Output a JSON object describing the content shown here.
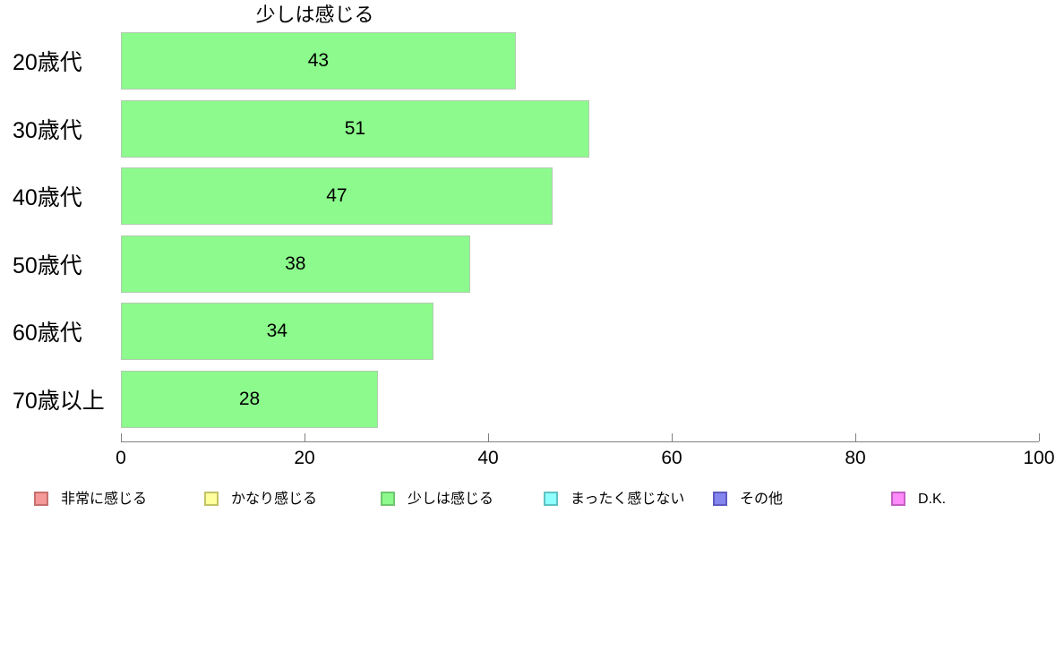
{
  "chart_data": {
    "type": "bar",
    "orientation": "horizontal",
    "title": "少しは感じる",
    "categories": [
      "20歳代",
      "30歳代",
      "40歳代",
      "50歳代",
      "60歳代",
      "70歳以上"
    ],
    "values": [
      43,
      51,
      47,
      38,
      34,
      28
    ],
    "xlabel": "",
    "ylabel": "",
    "xlim": [
      0,
      100
    ],
    "x_ticks": [
      0,
      20,
      40,
      60,
      80,
      100
    ],
    "grid": false,
    "bar_color": "#8cfa8c",
    "bar_border_color": "#b2ccb2",
    "axis_color": "#808080",
    "value_labels_shown": true,
    "legend_position": "bottom",
    "legend": [
      {
        "label": "非常に感じる",
        "color": "#f59898",
        "border": "#c76f6f"
      },
      {
        "label": "かなり感じる",
        "color": "#ffff9e",
        "border": "#c2c266"
      },
      {
        "label": "少しは感じる",
        "color": "#8cfa8c",
        "border": "#6fc76f"
      },
      {
        "label": "まったく感じない",
        "color": "#8fffff",
        "border": "#5fc2c2"
      },
      {
        "label": "その他",
        "color": "#8585ee",
        "border": "#5c5cc2"
      },
      {
        "label": "D.K.",
        "color": "#ff8afa",
        "border": "#c25fc2"
      }
    ]
  }
}
